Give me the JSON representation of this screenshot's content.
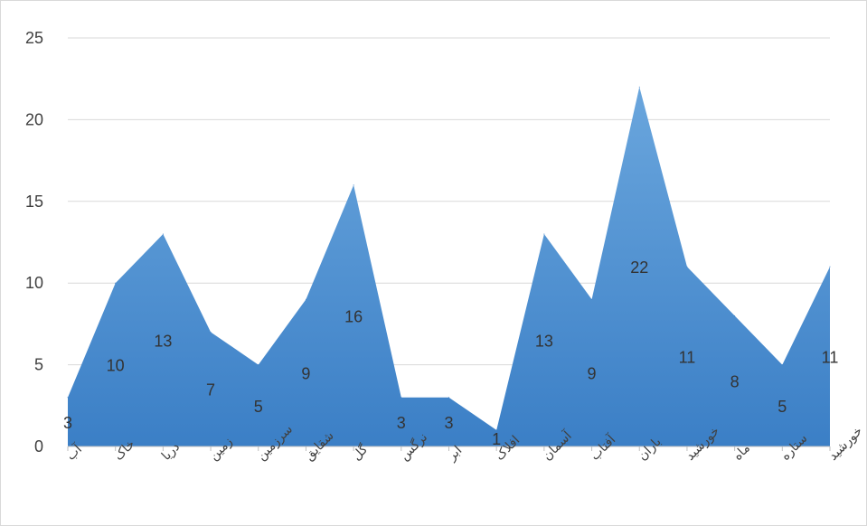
{
  "chart_data": {
    "type": "area",
    "title": "",
    "xlabel": "",
    "ylabel": "",
    "categories": [
      "آب",
      "خاک",
      "دریا",
      "زمین",
      "سرزمین",
      "شقایق",
      "گل",
      "نرگس",
      "ابر",
      "افلاک",
      "آسمان",
      "آفتاب",
      "باران",
      "خورشید",
      "ماه",
      "ستاره",
      "خورشید"
    ],
    "series": [
      {
        "values": [
          3,
          10,
          13,
          7,
          5,
          9,
          16,
          3,
          3,
          1,
          13,
          9,
          22,
          11,
          8,
          5,
          11
        ]
      }
    ],
    "yticks": [
      "0",
      "5",
      "10",
      "15",
      "20",
      "25"
    ],
    "ylim": [
      0,
      25
    ],
    "grid": true,
    "legend": "none",
    "data_labels": true,
    "colors": {
      "area": "#5b9bd5",
      "area_dark": "#3f7fc4",
      "grid": "#d9d9d9",
      "text": "#404040"
    }
  }
}
